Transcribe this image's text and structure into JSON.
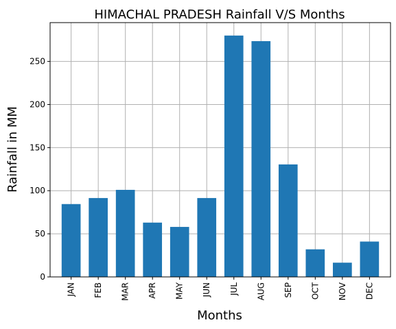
{
  "chart_data": {
    "type": "bar",
    "title": "HIMACHAL PRADESH Rainfall V/S Months",
    "xlabel": "Months",
    "ylabel": "Rainfall in MM",
    "categories": [
      "JAN",
      "FEB",
      "MAR",
      "APR",
      "MAY",
      "JUN",
      "JUL",
      "AUG",
      "SEP",
      "OCT",
      "NOV",
      "DEC"
    ],
    "values": [
      84.5,
      91.5,
      101.0,
      63.0,
      58.0,
      91.5,
      280.0,
      273.5,
      130.5,
      32.0,
      16.5,
      41.0
    ],
    "ylim": [
      0,
      295
    ],
    "yticks": [
      0,
      50,
      100,
      150,
      200,
      250
    ],
    "grid": true,
    "legend": "none",
    "bar_color": "#1f77b4"
  }
}
